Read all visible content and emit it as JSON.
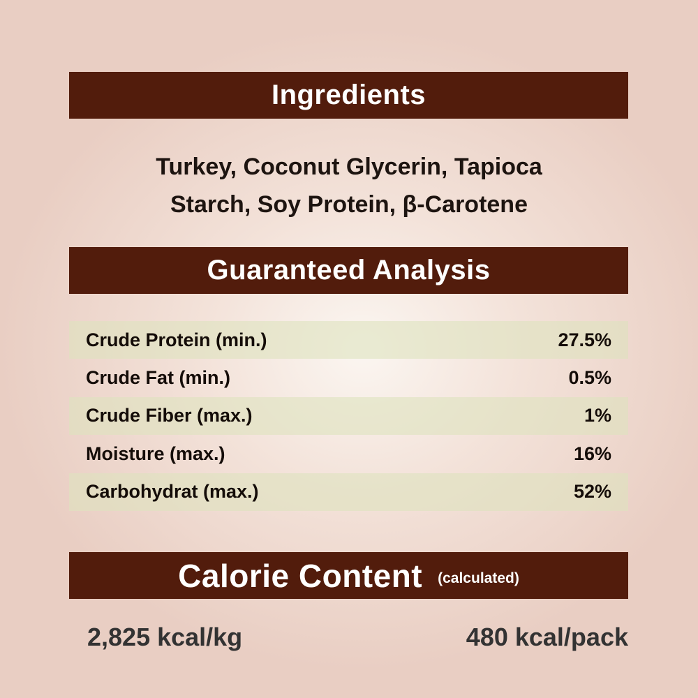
{
  "ingredients": {
    "heading": "Ingredients",
    "line1": "Turkey, Coconut Glycerin, Tapioca",
    "line2": "Starch, Soy Protein, β-Carotene"
  },
  "analysis": {
    "heading": "Guaranteed Analysis",
    "rows": [
      {
        "label": "Crude Protein (min.)",
        "value": "27.5%"
      },
      {
        "label": "Crude Fat (min.)",
        "value": "0.5%"
      },
      {
        "label": "Crude Fiber (max.)",
        "value": "1%"
      },
      {
        "label": "Moisture (max.)",
        "value": "16%"
      },
      {
        "label": "Carbohydrat (max.)",
        "value": "52%"
      }
    ]
  },
  "calorie": {
    "heading": "Calorie Content",
    "subheading": "(calculated)",
    "per_kg": "2,825 kcal/kg",
    "per_pack": "480 kcal/pack"
  },
  "colors": {
    "header_bar": "#521c0c",
    "background": "#e9cec3",
    "row_highlight": "#e3e4c8"
  }
}
